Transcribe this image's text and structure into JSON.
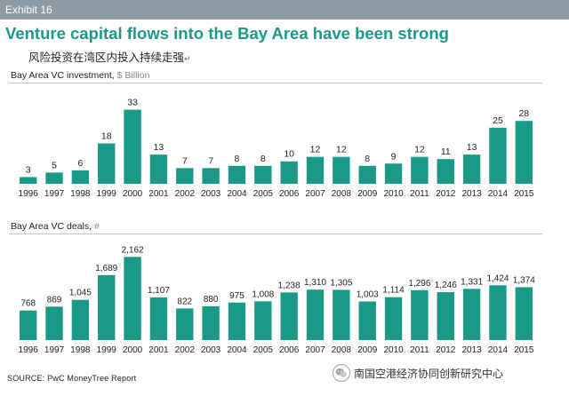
{
  "exhibit_label": "Exhibit 16",
  "headline": "Venture capital flows into the Bay Area have been strong",
  "subheadline": "风险投资在湾区内投入持续走强",
  "subheadline_mark": "↵",
  "source": "SOURCE: PwC MoneyTree Report",
  "watermark": "南国空港经济协同创新研究中心",
  "watermark_icon": "wechat-icon",
  "colors": {
    "bar": "#1a9a86",
    "header_bar": "#8e9aa3",
    "headline": "#1a9a86"
  },
  "chart_data": [
    {
      "type": "bar",
      "title": "Bay Area VC investment,",
      "unit": "$ Billion",
      "categories": [
        "1996",
        "1997",
        "1998",
        "1999",
        "2000",
        "2001",
        "2002",
        "2003",
        "2004",
        "2005",
        "2006",
        "2007",
        "2008",
        "2009",
        "2010",
        "2011",
        "2012",
        "2013",
        "2014",
        "2015"
      ],
      "values": [
        3,
        5,
        6,
        18,
        33,
        13,
        7,
        7,
        8,
        8,
        10,
        12,
        12,
        8,
        9,
        12,
        11,
        13,
        25,
        28
      ],
      "value_labels": [
        "3",
        "5",
        "6",
        "18",
        "33",
        "13",
        "7",
        "7",
        "8",
        "8",
        "10",
        "12",
        "12",
        "8",
        "9",
        "12",
        "11",
        "13",
        "25",
        "28"
      ],
      "ylim": [
        0,
        36
      ],
      "grid": false
    },
    {
      "type": "bar",
      "title": "Bay Area VC deals,",
      "unit": "#",
      "categories": [
        "1996",
        "1997",
        "1998",
        "1999",
        "2000",
        "2001",
        "2002",
        "2003",
        "2004",
        "2005",
        "2006",
        "2007",
        "2008",
        "2009",
        "2010",
        "2011",
        "2012",
        "2013",
        "2014",
        "2015"
      ],
      "values": [
        768,
        869,
        1045,
        1689,
        2162,
        1107,
        822,
        880,
        975,
        1008,
        1238,
        1310,
        1305,
        1003,
        1114,
        1296,
        1246,
        1331,
        1424,
        1374
      ],
      "value_labels": [
        "768",
        "869",
        "1,045",
        "1,689",
        "2,162",
        "1,107",
        "822",
        "880",
        "975",
        "1,008",
        "1,238",
        "1,310",
        "1,305",
        "1,003",
        "1,114",
        "1,296",
        "1,246",
        "1,331",
        "1,424",
        "1,374"
      ],
      "ylim": [
        0,
        2400
      ],
      "grid": false
    }
  ]
}
